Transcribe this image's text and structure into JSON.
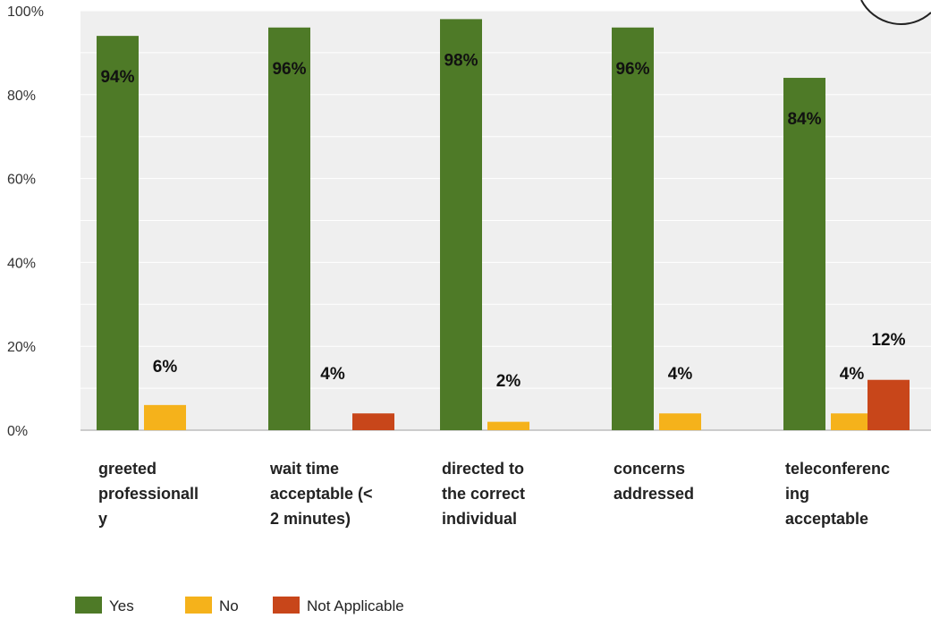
{
  "chart_data": {
    "type": "bar",
    "categories": [
      [
        "greeted",
        "professionall",
        "y"
      ],
      [
        "wait time",
        "acceptable (<",
        "2 minutes)"
      ],
      [
        "directed to",
        "the correct",
        "individual"
      ],
      [
        "concerns",
        "addressed"
      ],
      [
        "teleconferenc",
        "ing",
        "acceptable"
      ]
    ],
    "series": [
      {
        "name": "Yes",
        "color": "#4e7a27",
        "values": [
          94,
          96,
          98,
          96,
          84
        ],
        "labels": [
          "94%",
          "96%",
          "98%",
          "96%",
          "84%"
        ]
      },
      {
        "name": "No",
        "color": "#f5b21b",
        "values": [
          6,
          0,
          2,
          4,
          4
        ],
        "labels": [
          "6%",
          "",
          "2%",
          "4%",
          "4%"
        ]
      },
      {
        "name": "Not Applicable",
        "color": "#c8461a",
        "values": [
          0,
          4,
          0,
          0,
          12
        ],
        "labels": [
          "",
          "4%",
          "",
          "",
          "12%"
        ]
      }
    ],
    "ylim": [
      0,
      100
    ],
    "yticks": [
      "0%",
      "20%",
      "40%",
      "60%",
      "80%",
      "100%"
    ],
    "grid": true,
    "legend": "bottom-left",
    "plot_background": "#efefef",
    "title": "",
    "xlabel": "",
    "ylabel": ""
  }
}
